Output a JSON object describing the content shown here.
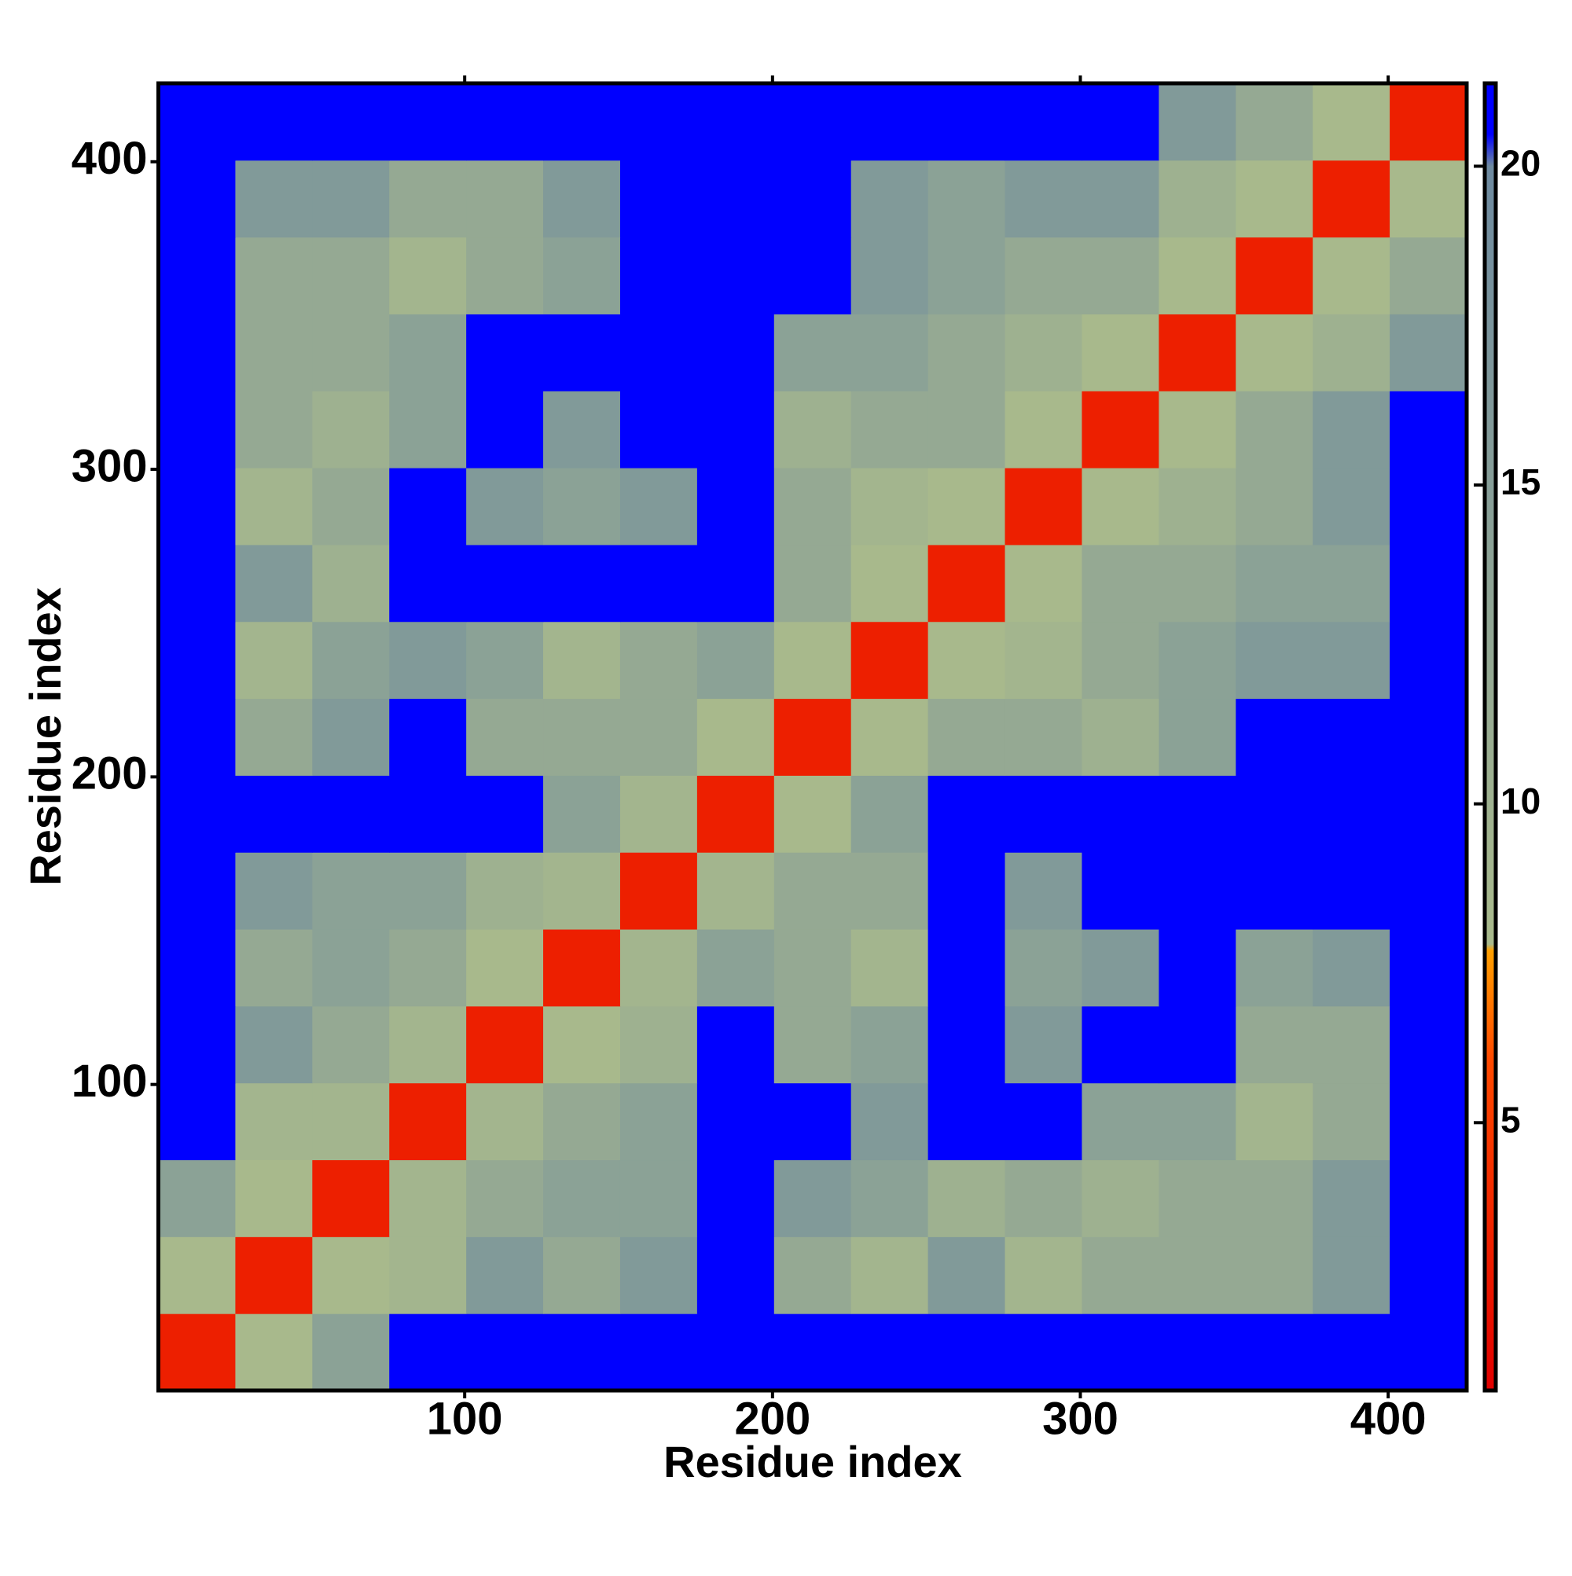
{
  "chart_data": {
    "type": "heatmap",
    "xlabel": "Residue index",
    "ylabel": "Residue index",
    "xlim": [
      0.5,
      425.5
    ],
    "ylim": [
      0.5,
      425.5
    ],
    "xticks": [
      100,
      200,
      300,
      400
    ],
    "yticks": [
      100,
      200,
      300,
      400
    ],
    "xbins": [
      0.5,
      25.5,
      50.5,
      75.5,
      100.5,
      125.5,
      150.5,
      175.5,
      200.5,
      225.5,
      250.5,
      275.5,
      300.5,
      325.5,
      350.5,
      375.5,
      400.5,
      425.5
    ],
    "ybins": [
      0.5,
      25.5,
      50.5,
      75.5,
      100.5,
      125.5,
      150.5,
      175.5,
      200.5,
      225.5,
      250.5,
      275.5,
      300.5,
      325.5,
      350.5,
      375.5,
      400.5,
      425.5
    ],
    "z": [
      [
        3,
        8,
        14,
        21,
        21,
        21,
        21,
        21,
        21,
        21,
        21,
        21,
        21,
        21,
        21,
        21,
        21
      ],
      [
        8,
        3,
        8,
        9,
        16,
        12,
        16,
        21,
        12,
        9,
        16,
        9,
        12,
        12,
        12,
        16,
        21
      ],
      [
        14,
        8,
        3,
        9,
        12,
        14,
        14,
        21,
        16,
        14,
        10,
        12,
        10,
        12,
        12,
        16,
        21
      ],
      [
        21,
        9,
        9,
        3,
        9,
        12,
        14,
        21,
        21,
        16,
        21,
        21,
        14,
        14,
        9,
        12,
        21
      ],
      [
        21,
        16,
        12,
        9,
        3,
        8,
        10,
        21,
        12,
        14,
        21,
        16,
        21,
        21,
        12,
        12,
        21
      ],
      [
        21,
        12,
        14,
        12,
        8,
        3,
        9,
        14,
        12,
        9,
        21,
        14,
        16,
        21,
        14,
        16,
        21
      ],
      [
        21,
        16,
        14,
        14,
        10,
        9,
        3,
        9,
        12,
        12,
        21,
        16,
        21,
        21,
        21,
        21,
        21
      ],
      [
        21,
        21,
        21,
        21,
        21,
        14,
        9,
        3,
        8,
        14,
        21,
        21,
        21,
        21,
        21,
        21,
        21
      ],
      [
        21,
        12,
        16,
        21,
        12,
        12,
        12,
        8,
        3,
        8,
        12,
        12,
        10,
        14,
        21,
        21,
        21
      ],
      [
        21,
        9,
        14,
        16,
        14,
        9,
        12,
        14,
        8,
        3,
        8,
        9,
        12,
        14,
        16,
        16,
        21
      ],
      [
        21,
        16,
        10,
        21,
        21,
        21,
        21,
        21,
        12,
        8,
        3,
        8,
        12,
        12,
        14,
        14,
        21
      ],
      [
        21,
        9,
        12,
        21,
        16,
        14,
        16,
        21,
        12,
        9,
        8,
        3,
        8,
        10,
        12,
        16,
        21
      ],
      [
        21,
        12,
        10,
        14,
        21,
        16,
        21,
        21,
        10,
        12,
        12,
        8,
        3,
        8,
        12,
        16,
        21
      ],
      [
        21,
        12,
        12,
        14,
        21,
        21,
        21,
        21,
        14,
        14,
        12,
        10,
        8,
        3,
        8,
        10,
        16
      ],
      [
        21,
        12,
        12,
        9,
        12,
        14,
        21,
        21,
        21,
        16,
        14,
        12,
        12,
        8,
        3,
        8,
        12
      ],
      [
        21,
        16,
        16,
        12,
        12,
        16,
        21,
        21,
        21,
        16,
        14,
        16,
        16,
        10,
        8,
        3,
        8
      ],
      [
        21,
        21,
        21,
        21,
        21,
        21,
        21,
        21,
        21,
        21,
        21,
        21,
        21,
        16,
        12,
        8,
        3
      ]
    ],
    "zlim": [
      0.8,
      21.3
    ],
    "zticks": [
      5,
      10,
      15,
      20
    ],
    "colorscale": [
      {
        "value": 0.8,
        "color": "#e00000"
      },
      {
        "value": 6,
        "color": "#ff4a00"
      },
      {
        "value": 7.7,
        "color": "#ffa000"
      },
      {
        "value": 7.8,
        "color": "#a9ba8c"
      },
      {
        "value": 20,
        "color": "#6e8aa0"
      },
      {
        "value": 20.5,
        "color": "#0000ff"
      },
      {
        "value": 21.3,
        "color": "#0000ff"
      }
    ]
  }
}
